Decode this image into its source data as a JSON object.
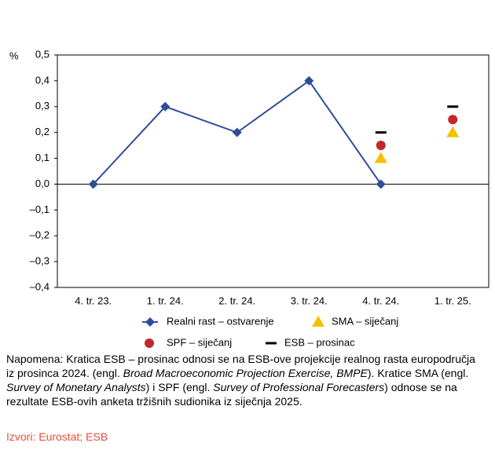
{
  "chart_data": {
    "type": "line",
    "y_unit": "%",
    "categories": [
      "4. tr. 23.",
      "1. tr. 24.",
      "2. tr. 24.",
      "3. tr. 24.",
      "4. tr. 24.",
      "1. tr. 25."
    ],
    "series": [
      {
        "name": "Realni rast – ostvarenje",
        "color": "#2e4d9b",
        "marker": "diamond",
        "values": [
          0,
          0.3,
          0.2,
          0.4,
          0,
          null
        ]
      },
      {
        "name": "SMA – siječanj",
        "color": "#f5c000",
        "marker": "triangle",
        "values": [
          null,
          null,
          null,
          null,
          0.1,
          0.2
        ]
      },
      {
        "name": "SPF – siječanj",
        "color": "#c0282a",
        "marker": "circle",
        "values": [
          null,
          null,
          null,
          null,
          0.15,
          0.25
        ]
      },
      {
        "name": "ESB – prosinac",
        "color": "#000000",
        "marker": "dash",
        "values": [
          null,
          null,
          null,
          null,
          0.2,
          0.3
        ]
      }
    ],
    "ylim": [
      -0.4,
      0.5
    ],
    "yticks": [
      {
        "value": -0.4,
        "label": "–0,4"
      },
      {
        "value": -0.3,
        "label": "–0,3"
      },
      {
        "value": -0.2,
        "label": "–0,2"
      },
      {
        "value": -0.1,
        "label": "–0,1"
      },
      {
        "value": 0,
        "label": "0,0"
      },
      {
        "value": 0.1,
        "label": "0,1"
      },
      {
        "value": 0.2,
        "label": "0,2"
      },
      {
        "value": 0.3,
        "label": "0,3"
      },
      {
        "value": 0.4,
        "label": "0,4"
      },
      {
        "value": 0.5,
        "label": "0,5"
      }
    ]
  },
  "note": [
    {
      "text": "Napomena: Kratica ESB – prosinac odnosi se na ESB-ove projekcije realnog rasta europodručja iz prosinca 2024. (engl. ",
      "italic": false
    },
    {
      "text": "Broad Macroeconomic Projection Exercise, BMPE",
      "italic": true
    },
    {
      "text": "). Kratice SMA (engl. ",
      "italic": false
    },
    {
      "text": "Survey of Monetary Analysts",
      "italic": true
    },
    {
      "text": ") i SPF (engl. ",
      "italic": false
    },
    {
      "text": "Survey of Professional Forecasters",
      "italic": true
    },
    {
      "text": ") odnose se na rezultate ESB-ovih anketa tržišnih sudionika iz siječnja 2025.",
      "italic": false
    }
  ],
  "source": {
    "text": "Izvori: Eurostat; ESB",
    "color": "#e0503a"
  }
}
